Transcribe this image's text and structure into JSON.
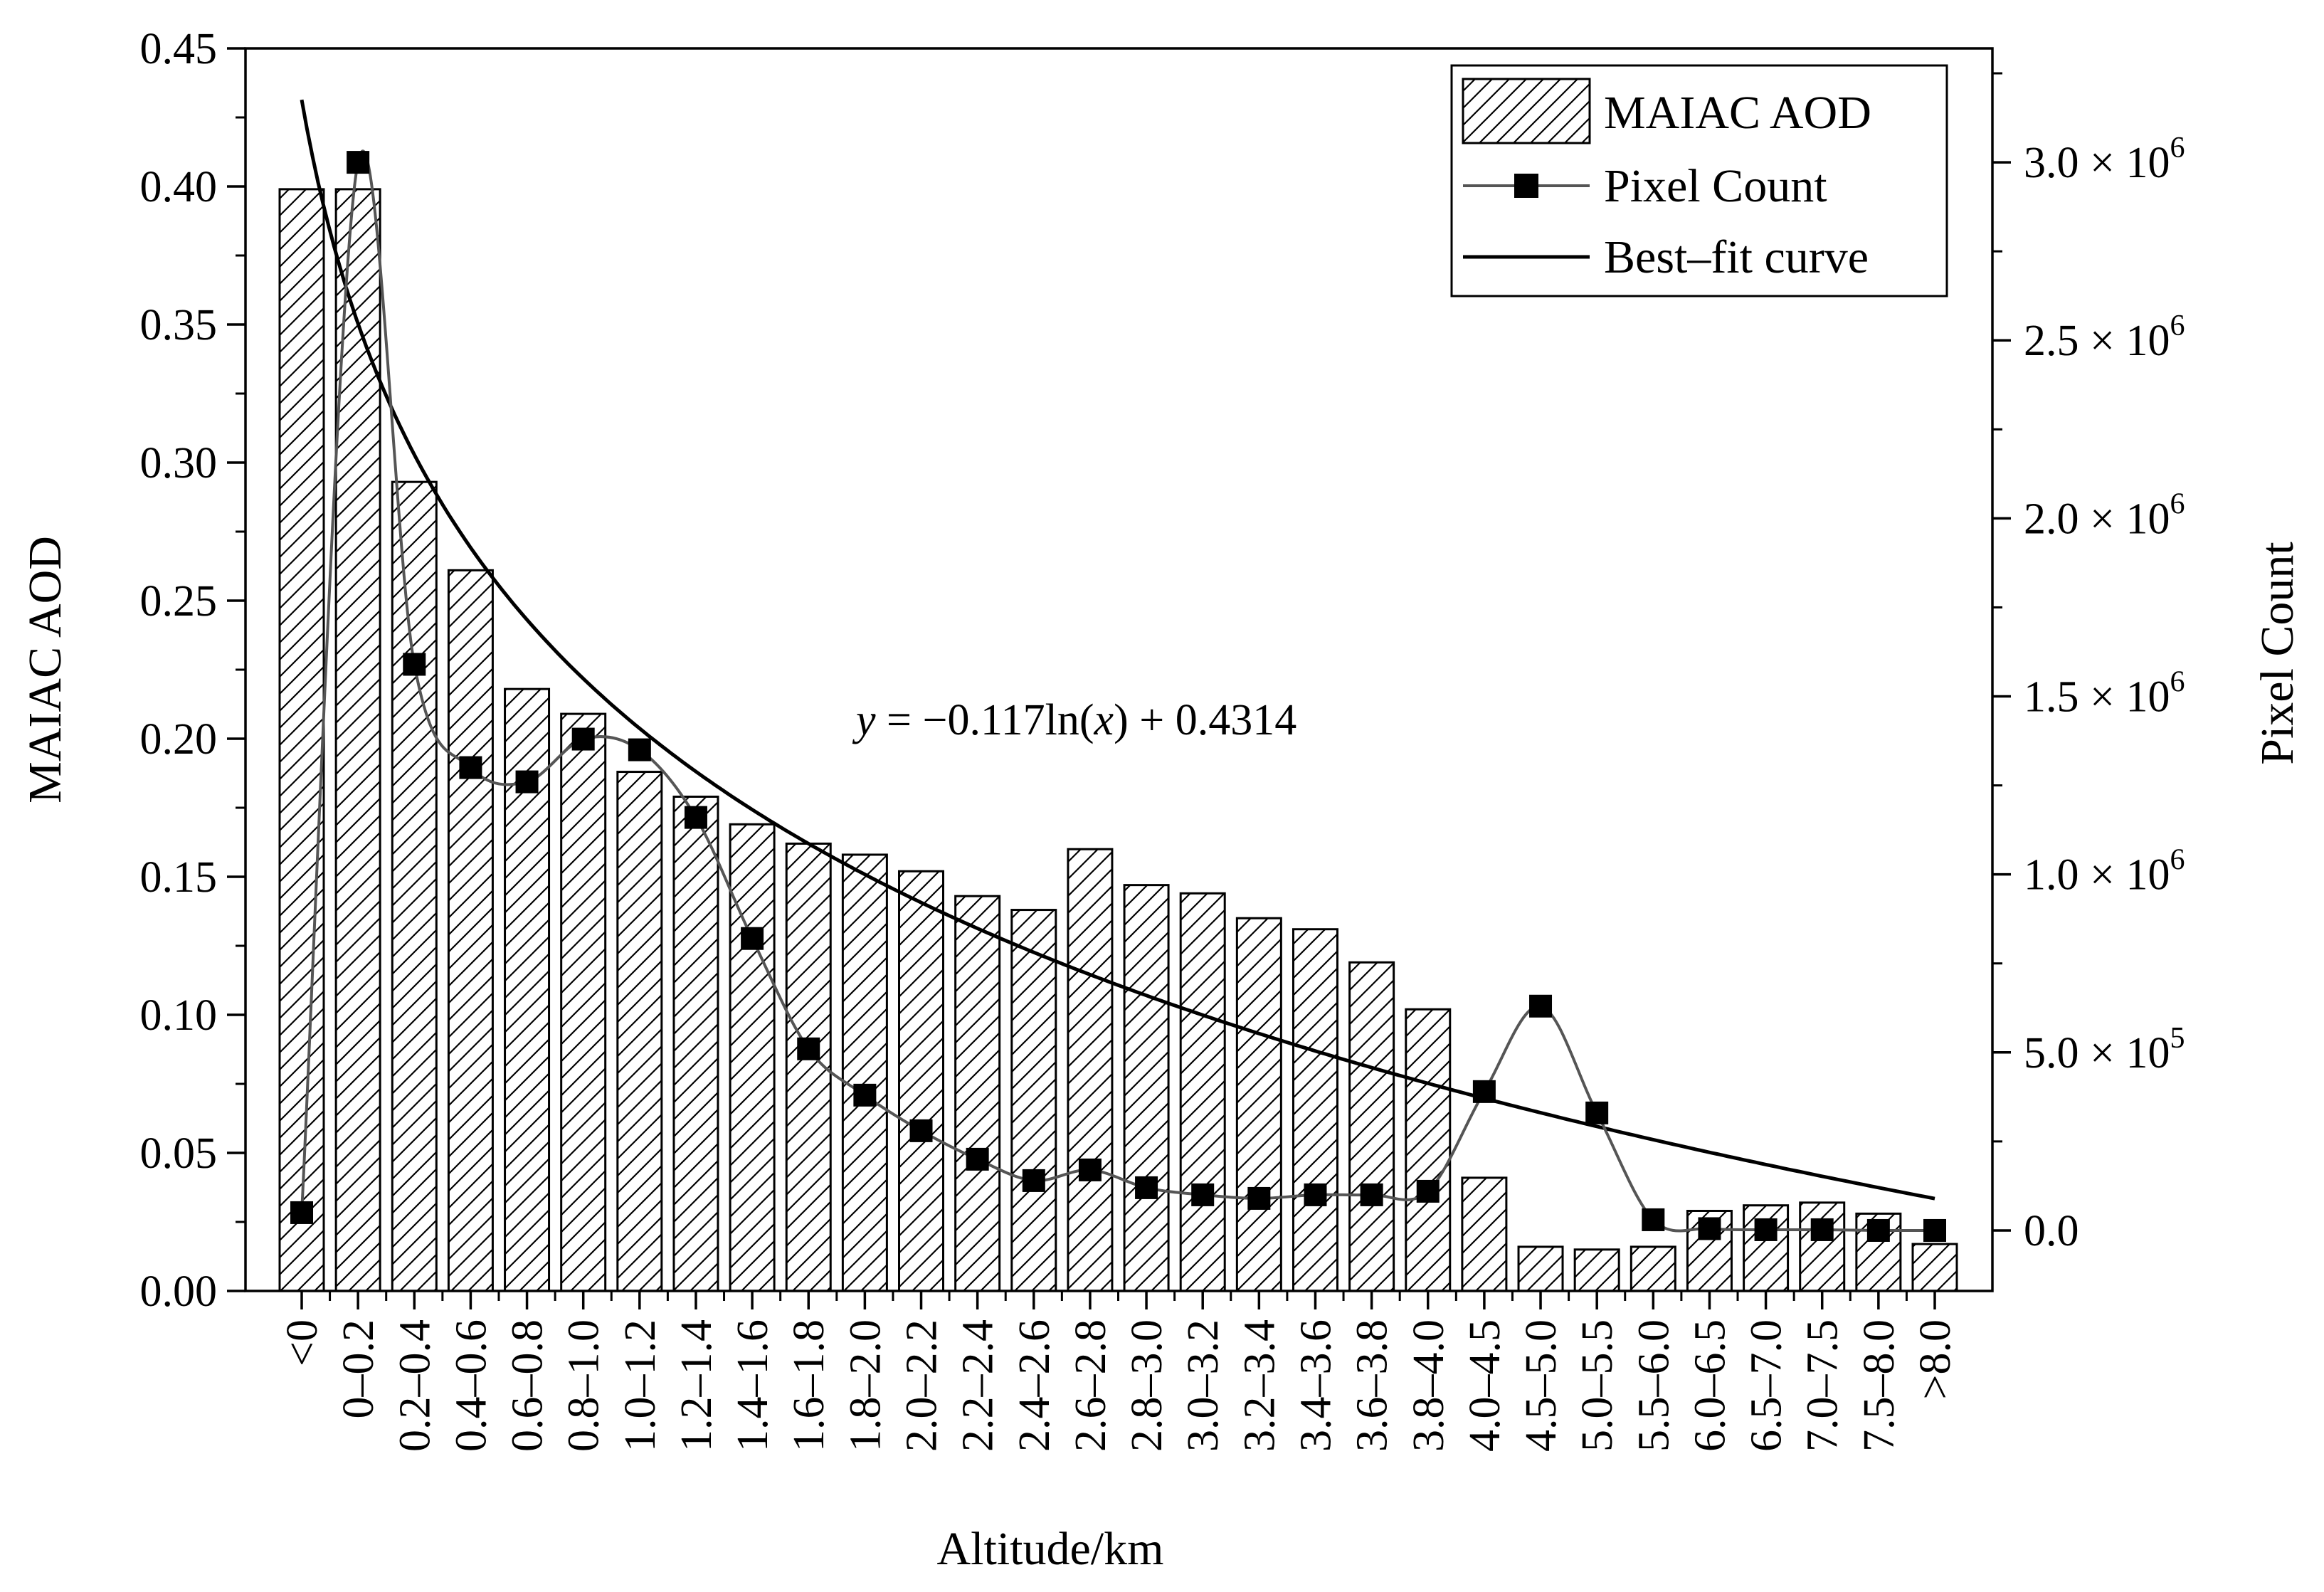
{
  "chart_data": {
    "type": "bar",
    "title": "",
    "xlabel": "Altitude/km",
    "ylabel": "MAIAC AOD",
    "y2label": "Pixel Count",
    "ylim": [
      0,
      0.45
    ],
    "y2lim": [
      -170000,
      3320000
    ],
    "categories": [
      "<0",
      "0–0.2",
      "0.2–0.4",
      "0.4–0.6",
      "0.6–0.8",
      "0.8–1.0",
      "1.0–1.2",
      "1.2–1.4",
      "1.4–1.6",
      "1.6–1.8",
      "1.8–2.0",
      "2.0–2.2",
      "2.2–2.4",
      "2.4–2.6",
      "2.6–2.8",
      "2.8–3.0",
      "3.0–3.2",
      "3.2–3.4",
      "3.4–3.6",
      "3.6–3.8",
      "3.8–4.0",
      "4.0–4.5",
      "4.5–5.0",
      "5.0–5.5",
      "5.5–6.0",
      "6.0–6.5",
      "6.5–7.0",
      "7.0–7.5",
      "7.5–8.0",
      ">8.0"
    ],
    "y_ticks": [
      "0.00",
      "0.05",
      "0.10",
      "0.15",
      "0.20",
      "0.25",
      "0.30",
      "0.35",
      "0.40",
      "0.45"
    ],
    "y_tick_values": [
      0,
      0.05,
      0.1,
      0.15,
      0.2,
      0.25,
      0.3,
      0.35,
      0.4,
      0.45
    ],
    "y2_tick_values": [
      0,
      500000,
      1000000,
      1500000,
      2000000,
      2500000,
      3000000
    ],
    "y2_ticks": [
      {
        "mantissa": "0.0",
        "times": "",
        "base": "",
        "exp": ""
      },
      {
        "mantissa": "5.0",
        "times": " × ",
        "base": "10",
        "exp": "5"
      },
      {
        "mantissa": "1.0",
        "times": " × ",
        "base": "10",
        "exp": "6"
      },
      {
        "mantissa": "1.5",
        "times": " × ",
        "base": "10",
        "exp": "6"
      },
      {
        "mantissa": "2.0",
        "times": " × ",
        "base": "10",
        "exp": "6"
      },
      {
        "mantissa": "2.5",
        "times": " × ",
        "base": "10",
        "exp": "6"
      },
      {
        "mantissa": "3.0",
        "times": " × ",
        "base": "10",
        "exp": "6"
      }
    ],
    "series": [
      {
        "name": "MAIAC AOD",
        "type": "bar",
        "axis": "left",
        "values": [
          0.399,
          0.399,
          0.293,
          0.261,
          0.218,
          0.209,
          0.188,
          0.179,
          0.169,
          0.162,
          0.158,
          0.152,
          0.143,
          0.138,
          0.16,
          0.147,
          0.144,
          0.135,
          0.131,
          0.119,
          0.102,
          0.041,
          0.016,
          0.015,
          0.016,
          0.029,
          0.031,
          0.032,
          0.028,
          0.017
        ]
      },
      {
        "name": "Pixel Count",
        "type": "line",
        "axis": "right",
        "values": [
          50000,
          3000000,
          1590000,
          1300000,
          1260000,
          1380000,
          1350000,
          1160000,
          820000,
          510000,
          380000,
          280000,
          200000,
          140000,
          170000,
          120000,
          100000,
          90000,
          100000,
          100000,
          110000,
          390000,
          630000,
          330000,
          30000,
          5000,
          2000,
          2000,
          0,
          0
        ]
      },
      {
        "name": "Best–fit curve",
        "type": "curve",
        "axis": "left",
        "equation": {
          "a": -0.117,
          "b": 0.4314,
          "form": "a*ln(x)+b"
        }
      }
    ],
    "equation_label": {
      "y": "y",
      "eq": " = −0.117ln(",
      "x": "x",
      "rest": ") + 0.4314"
    },
    "legend": {
      "position": "top-right",
      "items": [
        "MAIAC AOD",
        "Pixel Count",
        "Best–fit curve"
      ]
    },
    "grid": false
  }
}
